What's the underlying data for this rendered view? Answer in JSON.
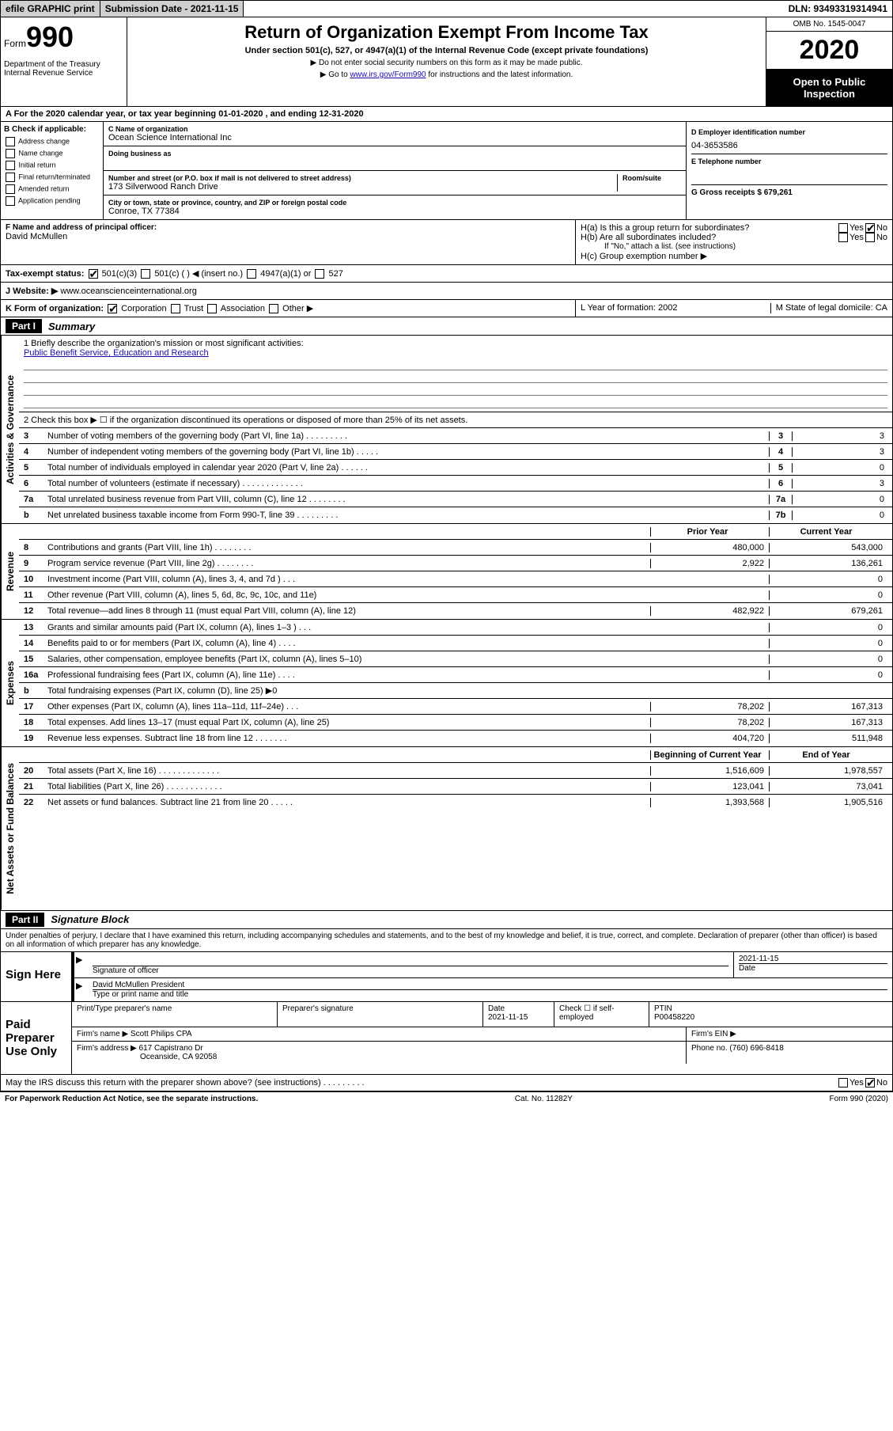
{
  "colors": {
    "black": "#000000",
    "white": "#ffffff",
    "btn_bg": "#d0d0d0",
    "shaded": "#b0b0b0",
    "link": "#1a0dab",
    "rule": "#7a7a7a"
  },
  "top": {
    "efile": "efile GRAPHIC print",
    "sub_label": "Submission Date - 2021-11-15",
    "dln": "DLN: 93493319314941"
  },
  "header": {
    "form_word": "Form",
    "form_num": "990",
    "dept": "Department of the Treasury\nInternal Revenue Service",
    "title": "Return of Organization Exempt From Income Tax",
    "sub": "Under section 501(c), 527, or 4947(a)(1) of the Internal Revenue Code (except private foundations)",
    "note1": "▶ Do not enter social security numbers on this form as it may be made public.",
    "note2_pre": "▶ Go to ",
    "note2_link": "www.irs.gov/Form990",
    "note2_post": " for instructions and the latest information.",
    "omb": "OMB No. 1545-0047",
    "year": "2020",
    "open": "Open to Public Inspection"
  },
  "period": "A For the 2020 calendar year, or tax year beginning 01-01-2020   , and ending 12-31-2020",
  "colB": {
    "label": "B Check if applicable:",
    "items": [
      "Address change",
      "Name change",
      "Initial return",
      "Final return/terminated",
      "Amended return",
      "Application pending"
    ]
  },
  "colC": {
    "name_label": "C Name of organization",
    "name": "Ocean Science International Inc",
    "dba_label": "Doing business as",
    "addr_label": "Number and street (or P.O. box if mail is not delivered to street address)",
    "room_label": "Room/suite",
    "addr": "173 Silverwood Ranch Drive",
    "city_label": "City or town, state or province, country, and ZIP or foreign postal code",
    "city": "Conroe, TX  77384"
  },
  "colD": {
    "ein_label": "D Employer identification number",
    "ein": "04-3653586",
    "tel_label": "E Telephone number",
    "gross_label": "G Gross receipts $ 679,261"
  },
  "rowF": {
    "f_label": "F  Name and address of principal officer:",
    "f_name": "David McMullen",
    "ha": "H(a)  Is this a group return for subordinates?",
    "hb": "H(b)  Are all subordinates included?",
    "hb_note": "If \"No,\" attach a list. (see instructions)",
    "hc": "H(c)  Group exemption number ▶",
    "yes": "Yes",
    "no": "No"
  },
  "taxExempt": {
    "label": "Tax-exempt status:",
    "opts": [
      "501(c)(3)",
      "501(c) (   ) ◀ (insert no.)",
      "4947(a)(1) or",
      "527"
    ]
  },
  "website": {
    "label": "J   Website: ▶",
    "val": "  www.oceanscienceinternational.org"
  },
  "rowK": {
    "k": "K Form of organization:",
    "opts": [
      "Corporation",
      "Trust",
      "Association",
      "Other ▶"
    ],
    "l": "L Year of formation: 2002",
    "m": "M State of legal domicile: CA"
  },
  "part1": {
    "header": "Part I",
    "title": "Summary",
    "q1_label": "1  Briefly describe the organization's mission or most significant activities:",
    "q1_val": "Public Benefit Service, Education and Research",
    "q2": "2   Check this box ▶ ☐  if the organization discontinued its operations or disposed of more than 25% of its net assets.",
    "lines_gov": [
      {
        "n": "3",
        "t": "Number of voting members of the governing body (Part VI, line 1a)  .    .    .    .    .    .    .    .    .",
        "b": "3",
        "v": "3"
      },
      {
        "n": "4",
        "t": "Number of independent voting members of the governing body (Part VI, line 1b)  .    .    .    .    .",
        "b": "4",
        "v": "3"
      },
      {
        "n": "5",
        "t": "Total number of individuals employed in calendar year 2020 (Part V, line 2a)  .    .    .    .    .    .",
        "b": "5",
        "v": "0"
      },
      {
        "n": "6",
        "t": "Total number of volunteers (estimate if necessary)  .    .    .    .    .    .    .    .    .    .    .    .    .",
        "b": "6",
        "v": "3"
      },
      {
        "n": "7a",
        "t": "Total unrelated business revenue from Part VIII, column (C), line 12  .    .    .    .    .    .    .    .",
        "b": "7a",
        "v": "0"
      },
      {
        "n": "b",
        "t": "Net unrelated business taxable income from Form 990-T, line 39  .    .    .    .    .    .    .    .    .",
        "b": "7b",
        "v": "0"
      }
    ],
    "col_prior": "Prior Year",
    "col_curr": "Current Year",
    "revenue": [
      {
        "n": "8",
        "t": "Contributions and grants (Part VIII, line 1h)  .    .    .    .    .    .    .    .",
        "p": "480,000",
        "c": "543,000"
      },
      {
        "n": "9",
        "t": "Program service revenue (Part VIII, line 2g)  .    .    .    .    .    .    .    .",
        "p": "2,922",
        "c": "136,261"
      },
      {
        "n": "10",
        "t": "Investment income (Part VIII, column (A), lines 3, 4, and 7d )  .    .    .",
        "p": "",
        "c": "0"
      },
      {
        "n": "11",
        "t": "Other revenue (Part VIII, column (A), lines 5, 6d, 8c, 9c, 10c, and 11e)",
        "p": "",
        "c": "0"
      },
      {
        "n": "12",
        "t": "Total revenue—add lines 8 through 11 (must equal Part VIII, column (A), line 12)",
        "p": "482,922",
        "c": "679,261"
      }
    ],
    "expenses": [
      {
        "n": "13",
        "t": "Grants and similar amounts paid (Part IX, column (A), lines 1–3 )  .    .    .",
        "p": "",
        "c": "0"
      },
      {
        "n": "14",
        "t": "Benefits paid to or for members (Part IX, column (A), line 4)  .    .    .    .",
        "p": "",
        "c": "0"
      },
      {
        "n": "15",
        "t": "Salaries, other compensation, employee benefits (Part IX, column (A), lines 5–10)",
        "p": "",
        "c": "0"
      },
      {
        "n": "16a",
        "t": "Professional fundraising fees (Part IX, column (A), line 11e)  .    .    .    .",
        "p": "",
        "c": "0"
      },
      {
        "n": "b",
        "t": "Total fundraising expenses (Part IX, column (D), line 25) ▶0",
        "p": "SHADED",
        "c": "SHADED"
      },
      {
        "n": "17",
        "t": "Other expenses (Part IX, column (A), lines 11a–11d, 11f–24e)  .    .    .",
        "p": "78,202",
        "c": "167,313"
      },
      {
        "n": "18",
        "t": "Total expenses. Add lines 13–17 (must equal Part IX, column (A), line 25)",
        "p": "78,202",
        "c": "167,313"
      },
      {
        "n": "19",
        "t": "Revenue less expenses. Subtract line 18 from line 12  .    .    .    .    .    .    .",
        "p": "404,720",
        "c": "511,948"
      }
    ],
    "col_begin": "Beginning of Current Year",
    "col_end": "End of Year",
    "netassets": [
      {
        "n": "20",
        "t": "Total assets (Part X, line 16)  .    .    .    .    .    .    .    .    .    .    .    .    .",
        "p": "1,516,609",
        "c": "1,978,557"
      },
      {
        "n": "21",
        "t": "Total liabilities (Part X, line 26)  .    .    .    .    .    .    .    .    .    .    .    .",
        "p": "123,041",
        "c": "73,041"
      },
      {
        "n": "22",
        "t": "Net assets or fund balances. Subtract line 21 from line 20  .    .    .    .    .",
        "p": "1,393,568",
        "c": "1,905,516"
      }
    ],
    "side_gov": "Activities & Governance",
    "side_rev": "Revenue",
    "side_exp": "Expenses",
    "side_na": "Net Assets or Fund Balances"
  },
  "part2": {
    "header": "Part II",
    "title": "Signature Block",
    "perjury": "Under penalties of perjury, I declare that I have examined this return, including accompanying schedules and statements, and to the best of my knowledge and belief, it is true, correct, and complete. Declaration of preparer (other than officer) is based on all information of which preparer has any knowledge.",
    "sign_here": "Sign Here",
    "sig_officer": "Signature of officer",
    "sig_date": "2021-11-15",
    "date_label": "Date",
    "officer_name": "David McMullen  President",
    "type_label": "Type or print name and title",
    "paid": "Paid Preparer Use Only",
    "prep_name_label": "Print/Type preparer's name",
    "prep_sig_label": "Preparer's signature",
    "prep_date_label": "Date",
    "prep_date": "2021-11-15",
    "check_self": "Check ☐ if self-employed",
    "ptin_label": "PTIN",
    "ptin": "P00458220",
    "firm_name_label": "Firm's name    ▶",
    "firm_name": "Scott Philips CPA",
    "firm_ein_label": "Firm's EIN ▶",
    "firm_addr_label": "Firm's address ▶",
    "firm_addr1": "617 Capistrano Dr",
    "firm_addr2": "Oceanside, CA  92058",
    "phone_label": "Phone no.",
    "phone": "(760) 696-8418",
    "discuss": "May the IRS discuss this return with the preparer shown above? (see instructions)  .    .    .    .    .    .    .    .    .",
    "yes": "Yes",
    "no": "No"
  },
  "footer": {
    "l": "For Paperwork Reduction Act Notice, see the separate instructions.",
    "c": "Cat. No. 11282Y",
    "r": "Form 990 (2020)"
  }
}
